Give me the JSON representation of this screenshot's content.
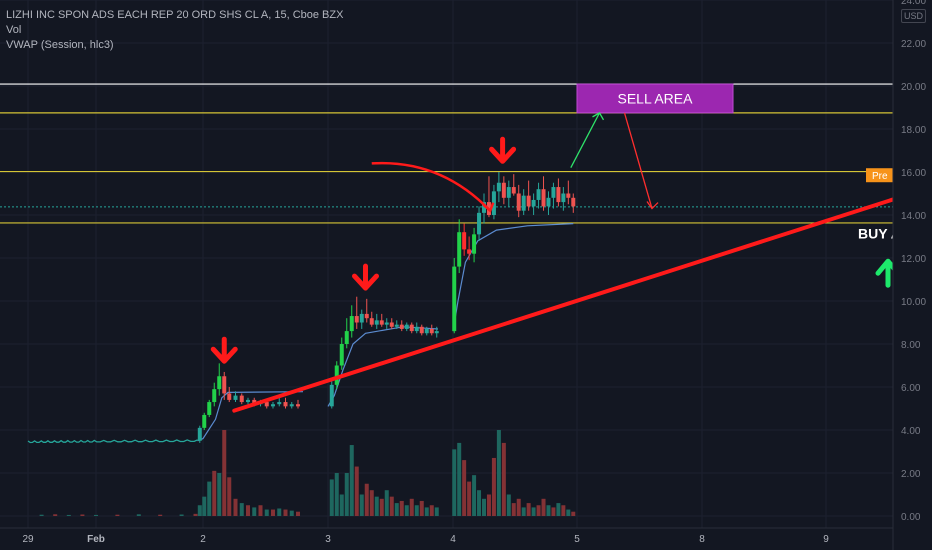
{
  "header": {
    "symbol_line": "LIZHI INC SPON ADS EACH REP 20 ORD SHS CL A, 15, Cboe BZX",
    "indicator_vol": "Vol",
    "indicator_vwap": "VWAP (Session, hlc3)"
  },
  "currency": "USD",
  "colors": {
    "background": "#131722",
    "up_candle": "#26a69a",
    "down_candle": "#ef5350",
    "bright_up": "#22d24a",
    "bright_down": "#ff2e2e",
    "trendline": "#ff1a1a",
    "white_line": "#ffffff",
    "yellow_line": "#d4c435",
    "dotted_green": "#26a69a",
    "vwap": "#5b8bd0",
    "sell_box": "#9c27b0",
    "buy_arrow": "#1de96b",
    "pre_badge": "#f7931a"
  },
  "chart_data": {
    "type": "candlestick",
    "y_axis": {
      "range": [
        0,
        24
      ],
      "ticks": [
        "24.00",
        "22.00",
        "20.00",
        "18.00",
        "16.00",
        "14.00",
        "12.00",
        "10.00",
        "8.00",
        "6.00",
        "4.00",
        "2.00",
        "0.00"
      ],
      "tick_values": [
        24,
        22,
        20,
        18,
        16,
        14,
        12,
        10,
        8,
        6,
        4,
        2,
        0
      ]
    },
    "x_axis": {
      "ticks": [
        "29",
        "Feb",
        "2",
        "3",
        "4",
        "5",
        "8",
        "9"
      ],
      "tick_bold": [
        false,
        true,
        false,
        false,
        false,
        false,
        false,
        false
      ]
    },
    "horizontal_levels": [
      {
        "label": "20.09",
        "value": 20.09,
        "color": "#ffffff",
        "style": "solid"
      },
      {
        "label": "18.75",
        "value": 18.75,
        "color": "#d4c435",
        "style": "solid"
      },
      {
        "label": "16.02",
        "value": 16.02,
        "color": "#d4c435",
        "style": "solid"
      },
      {
        "label": "15.85",
        "value": 15.85,
        "color": "#f7931a",
        "style": "badge",
        "badge_prefix": "Pre"
      },
      {
        "label": "14.38",
        "value": 14.38,
        "color": "#26a69a",
        "style": "dotted"
      },
      {
        "label": "13.63",
        "value": 13.63,
        "color": "#d4c435",
        "style": "solid"
      }
    ],
    "annotations": {
      "sell_area": {
        "text": "SELL AREA",
        "x1": 5.0,
        "x2": 6.25,
        "y1": 18.75,
        "y2": 20.09
      },
      "buy_area": {
        "text": "BUY AREA",
        "x": 7.55,
        "y": 12.9
      },
      "trendline": {
        "x1": 2.25,
        "y1": 4.9,
        "x2": 8.15,
        "y2": 15.85
      },
      "down_arrows": [
        {
          "x": 2.17,
          "y": 7.2
        },
        {
          "x": 3.3,
          "y": 10.6
        },
        {
          "x": 4.4,
          "y": 16.5
        }
      ],
      "curved_arrow": {
        "from": [
          3.35,
          16.4
        ],
        "ctrl": [
          3.9,
          16.6
        ],
        "to": [
          4.3,
          14.2
        ]
      },
      "green_arrow": {
        "from": [
          4.95,
          16.2
        ],
        "to": [
          5.18,
          18.75
        ]
      },
      "red_arrow": {
        "from": [
          5.38,
          18.75
        ],
        "to": [
          5.6,
          14.3
        ]
      },
      "buy_up_arrow": {
        "x": 7.5,
        "y": 11.2
      }
    },
    "price_segments": [
      {
        "type": "line",
        "x_from": 0.0,
        "x_to": 1.95,
        "open": 3.45,
        "close": 3.5
      },
      {
        "type": "candles",
        "candles": [
          [
            1.97,
            3.5,
            4.2,
            3.4,
            4.1
          ],
          [
            2.01,
            4.1,
            4.8,
            4.0,
            4.7
          ],
          [
            2.05,
            4.7,
            5.4,
            4.6,
            5.3
          ],
          [
            2.09,
            5.3,
            6.2,
            5.1,
            5.9
          ],
          [
            2.13,
            5.9,
            7.1,
            5.6,
            6.5
          ],
          [
            2.17,
            6.5,
            6.7,
            5.4,
            5.7
          ],
          [
            2.21,
            5.7,
            6.0,
            5.3,
            5.4
          ],
          [
            2.26,
            5.4,
            5.8,
            5.3,
            5.6
          ],
          [
            2.31,
            5.6,
            5.7,
            5.2,
            5.3
          ],
          [
            2.36,
            5.3,
            5.5,
            5.2,
            5.4
          ],
          [
            2.41,
            5.4,
            5.5,
            5.1,
            5.2
          ],
          [
            2.46,
            5.2,
            5.4,
            5.1,
            5.3
          ],
          [
            2.51,
            5.3,
            5.4,
            5.0,
            5.1
          ],
          [
            2.56,
            5.1,
            5.3,
            5.0,
            5.2
          ],
          [
            2.61,
            5.2,
            5.6,
            5.1,
            5.3
          ],
          [
            2.66,
            5.3,
            5.5,
            5.0,
            5.1
          ],
          [
            2.71,
            5.1,
            5.3,
            5.0,
            5.2
          ],
          [
            2.76,
            5.2,
            5.4,
            5.0,
            5.1
          ],
          [
            3.03,
            5.1,
            6.3,
            5.0,
            6.1
          ],
          [
            3.07,
            6.1,
            7.2,
            5.9,
            7.0
          ],
          [
            3.11,
            7.0,
            8.3,
            6.8,
            8.0
          ],
          [
            3.15,
            8.0,
            9.2,
            7.8,
            8.6
          ],
          [
            3.19,
            8.6,
            9.8,
            8.3,
            9.3
          ],
          [
            3.23,
            9.3,
            10.2,
            8.7,
            9.0
          ],
          [
            3.27,
            9.0,
            9.6,
            8.7,
            9.4
          ],
          [
            3.31,
            9.4,
            10.1,
            9.0,
            9.2
          ],
          [
            3.35,
            9.2,
            9.5,
            8.8,
            8.9
          ],
          [
            3.39,
            8.9,
            9.4,
            8.7,
            9.1
          ],
          [
            3.43,
            9.1,
            9.4,
            8.8,
            8.9
          ],
          [
            3.47,
            8.9,
            9.2,
            8.7,
            9.0
          ],
          [
            3.51,
            9.0,
            9.2,
            8.7,
            8.8
          ],
          [
            3.55,
            8.8,
            9.1,
            8.7,
            8.9
          ],
          [
            3.59,
            8.9,
            9.1,
            8.6,
            8.7
          ],
          [
            3.63,
            8.7,
            9.0,
            8.6,
            8.9
          ],
          [
            3.67,
            8.9,
            9.0,
            8.5,
            8.6
          ],
          [
            3.71,
            8.6,
            9.0,
            8.5,
            8.8
          ],
          [
            3.75,
            8.8,
            8.9,
            8.4,
            8.5
          ],
          [
            3.79,
            8.5,
            8.8,
            8.4,
            8.7
          ],
          [
            3.83,
            8.7,
            8.9,
            8.4,
            8.5
          ],
          [
            3.87,
            8.5,
            8.8,
            8.3,
            8.6
          ],
          [
            4.01,
            8.6,
            12.0,
            8.5,
            11.6
          ],
          [
            4.05,
            11.6,
            13.8,
            11.3,
            13.2
          ],
          [
            4.09,
            13.2,
            13.6,
            12.1,
            12.4
          ],
          [
            4.13,
            12.4,
            13.0,
            11.9,
            12.2
          ],
          [
            4.17,
            12.2,
            13.4,
            11.8,
            13.1
          ],
          [
            4.21,
            13.1,
            14.4,
            12.8,
            14.1
          ],
          [
            4.25,
            14.1,
            15.0,
            13.6,
            14.6
          ],
          [
            4.29,
            14.6,
            15.8,
            13.9,
            14.0
          ],
          [
            4.33,
            14.0,
            15.4,
            13.8,
            15.1
          ],
          [
            4.37,
            15.1,
            16.0,
            14.6,
            15.5
          ],
          [
            4.41,
            15.5,
            15.8,
            14.5,
            14.8
          ],
          [
            4.45,
            14.8,
            15.6,
            14.4,
            15.3
          ],
          [
            4.49,
            15.3,
            15.9,
            14.9,
            15.0
          ],
          [
            4.53,
            15.0,
            15.4,
            13.9,
            14.2
          ],
          [
            4.57,
            14.2,
            15.2,
            14.0,
            14.9
          ],
          [
            4.61,
            14.9,
            15.6,
            14.2,
            14.4
          ],
          [
            4.65,
            14.4,
            15.0,
            14.0,
            14.7
          ],
          [
            4.69,
            14.7,
            15.5,
            14.3,
            15.2
          ],
          [
            4.73,
            15.2,
            15.8,
            14.2,
            14.4
          ],
          [
            4.77,
            14.4,
            15.1,
            14.0,
            14.8
          ],
          [
            4.81,
            14.8,
            15.5,
            14.3,
            15.3
          ],
          [
            4.85,
            15.3,
            15.7,
            14.4,
            14.6
          ],
          [
            4.89,
            14.6,
            15.3,
            14.2,
            15.0
          ],
          [
            4.93,
            15.0,
            15.6,
            14.5,
            14.8
          ],
          [
            4.97,
            14.8,
            15.0,
            14.1,
            14.4
          ]
        ]
      }
    ],
    "vwap_segments": [
      [
        [
          1.95,
          3.5
        ],
        [
          2.0,
          3.6
        ],
        [
          2.1,
          4.5
        ],
        [
          2.15,
          5.5
        ],
        [
          2.2,
          5.75
        ],
        [
          2.8,
          5.78
        ]
      ],
      [
        [
          3.0,
          5.1
        ],
        [
          3.05,
          5.6
        ],
        [
          3.12,
          6.8
        ],
        [
          3.2,
          8.0
        ],
        [
          3.3,
          8.5
        ],
        [
          3.6,
          8.8
        ],
        [
          3.88,
          8.7
        ]
      ],
      [
        [
          4.0,
          8.6
        ],
        [
          4.04,
          10.0
        ],
        [
          4.1,
          11.8
        ],
        [
          4.2,
          12.8
        ],
        [
          4.35,
          13.3
        ],
        [
          4.6,
          13.5
        ],
        [
          4.97,
          13.6
        ]
      ]
    ],
    "volume": {
      "bars": [
        [
          0.2,
          0.06,
          0
        ],
        [
          0.4,
          0.08,
          1
        ],
        [
          0.6,
          0.05,
          0
        ],
        [
          0.8,
          0.07,
          1
        ],
        [
          1.0,
          0.05,
          0
        ],
        [
          1.2,
          0.06,
          1
        ],
        [
          1.4,
          0.08,
          0
        ],
        [
          1.6,
          0.06,
          1
        ],
        [
          1.8,
          0.07,
          0
        ],
        [
          1.93,
          0.1,
          1
        ],
        [
          1.97,
          0.5,
          0
        ],
        [
          2.01,
          0.9,
          0
        ],
        [
          2.05,
          1.6,
          0
        ],
        [
          2.09,
          2.1,
          1
        ],
        [
          2.13,
          2.0,
          0
        ],
        [
          2.17,
          4.0,
          1
        ],
        [
          2.21,
          1.8,
          1
        ],
        [
          2.26,
          0.8,
          1
        ],
        [
          2.31,
          0.6,
          0
        ],
        [
          2.36,
          0.5,
          1
        ],
        [
          2.41,
          0.4,
          0
        ],
        [
          2.46,
          0.5,
          1
        ],
        [
          2.51,
          0.3,
          0
        ],
        [
          2.56,
          0.3,
          1
        ],
        [
          2.61,
          0.35,
          0
        ],
        [
          2.66,
          0.3,
          1
        ],
        [
          2.71,
          0.25,
          0
        ],
        [
          2.76,
          0.2,
          1
        ],
        [
          3.03,
          1.7,
          0
        ],
        [
          3.07,
          2.0,
          0
        ],
        [
          3.11,
          1.0,
          0
        ],
        [
          3.15,
          2.0,
          0
        ],
        [
          3.19,
          3.3,
          0
        ],
        [
          3.23,
          2.3,
          1
        ],
        [
          3.27,
          1.0,
          0
        ],
        [
          3.31,
          1.5,
          1
        ],
        [
          3.35,
          1.2,
          1
        ],
        [
          3.39,
          0.9,
          0
        ],
        [
          3.43,
          0.8,
          1
        ],
        [
          3.47,
          1.2,
          0
        ],
        [
          3.51,
          0.9,
          1
        ],
        [
          3.55,
          0.6,
          0
        ],
        [
          3.59,
          0.7,
          1
        ],
        [
          3.63,
          0.5,
          0
        ],
        [
          3.67,
          0.8,
          1
        ],
        [
          3.71,
          0.5,
          0
        ],
        [
          3.75,
          0.7,
          1
        ],
        [
          3.79,
          0.4,
          0
        ],
        [
          3.83,
          0.5,
          1
        ],
        [
          3.87,
          0.4,
          0
        ],
        [
          4.01,
          3.1,
          0
        ],
        [
          4.05,
          3.4,
          0
        ],
        [
          4.09,
          2.6,
          1
        ],
        [
          4.13,
          1.6,
          1
        ],
        [
          4.17,
          1.9,
          0
        ],
        [
          4.21,
          1.2,
          0
        ],
        [
          4.25,
          0.8,
          0
        ],
        [
          4.29,
          1.0,
          1
        ],
        [
          4.33,
          2.7,
          1
        ],
        [
          4.37,
          4.0,
          0
        ],
        [
          4.41,
          3.4,
          1
        ],
        [
          4.45,
          1.0,
          0
        ],
        [
          4.49,
          0.6,
          1
        ],
        [
          4.53,
          0.8,
          1
        ],
        [
          4.57,
          0.4,
          0
        ],
        [
          4.61,
          0.6,
          1
        ],
        [
          4.65,
          0.4,
          0
        ],
        [
          4.69,
          0.5,
          1
        ],
        [
          4.73,
          0.8,
          1
        ],
        [
          4.77,
          0.5,
          0
        ],
        [
          4.81,
          0.4,
          1
        ],
        [
          4.85,
          0.6,
          0
        ],
        [
          4.89,
          0.5,
          1
        ],
        [
          4.93,
          0.3,
          0
        ],
        [
          4.97,
          0.2,
          1
        ]
      ]
    }
  }
}
